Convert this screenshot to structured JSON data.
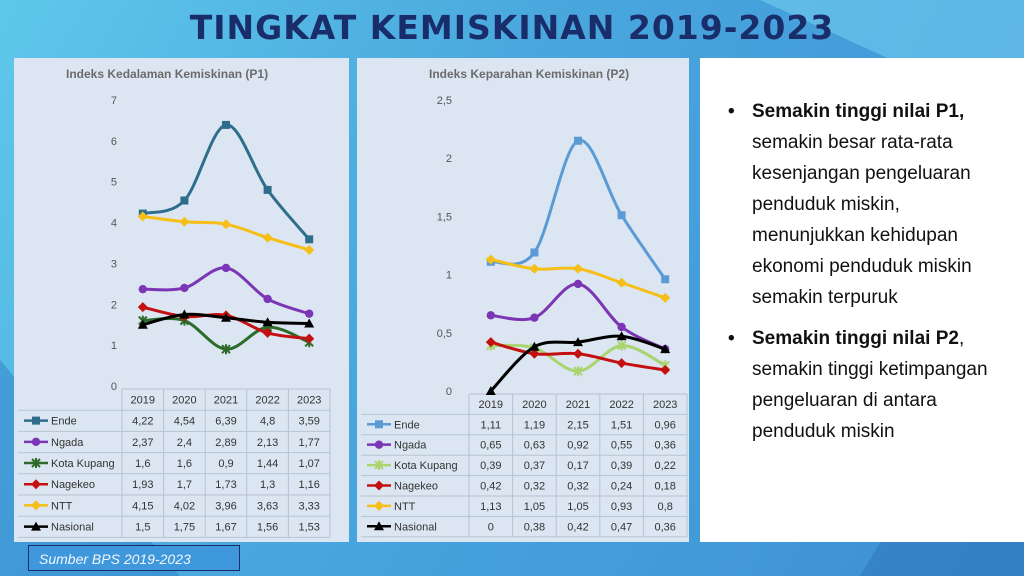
{
  "slide": {
    "title": "TINGKAT KEMISKINAN 2019-2023",
    "source": "Sumber BPS 2019-2023",
    "bullets": [
      {
        "bold": "Semakin tinggi nilai P1,",
        "rest": " semakin besar rata-rata kesenjangan pengeluaran penduduk miskin, menunjukkan kehidupan ekonomi penduduk miskin semakin terpuruk"
      },
      {
        "bold": "Semakin tinggi nilai P2",
        "rest": ", semakin tinggi ketimpangan pengeluaran di antara penduduk miskin"
      }
    ]
  },
  "colors": {
    "Ende": "#2f6d8c",
    "Ngada": "#7b35b5",
    "Kota Kupang": "#2e6b2a",
    "Nagekeo": "#c41010",
    "NTT": "#f5bf17",
    "Nasional": "#000000"
  },
  "colors_p2": {
    "Ende": "#5b9bd5",
    "Ngada": "#7b35b5",
    "Kota Kupang": "#a9d46e",
    "Nagekeo": "#c41010",
    "NTT": "#f5bf17",
    "Nasional": "#000000"
  },
  "chart_data": [
    {
      "type": "line",
      "title": "Indeks Kedalaman Kemiskinan (P1)",
      "categories": [
        "2019",
        "2020",
        "2021",
        "2022",
        "2023"
      ],
      "ylim": [
        0,
        7
      ],
      "yticks": [
        "0",
        "1",
        "2",
        "3",
        "4",
        "5",
        "6",
        "7"
      ],
      "series": [
        {
          "name": "Ende",
          "values": [
            4.22,
            4.54,
            6.39,
            4.8,
            3.59
          ],
          "labels": [
            "4,22",
            "4,54",
            "6,39",
            "4,8",
            "3,59"
          ]
        },
        {
          "name": "Ngada",
          "values": [
            2.37,
            2.4,
            2.89,
            2.13,
            1.77
          ],
          "labels": [
            "2,37",
            "2,4",
            "2,89",
            "2,13",
            "1,77"
          ]
        },
        {
          "name": "Kota Kupang",
          "values": [
            1.6,
            1.6,
            0.9,
            1.44,
            1.07
          ],
          "labels": [
            "1,6",
            "1,6",
            "0,9",
            "1,44",
            "1,07"
          ]
        },
        {
          "name": "Nagekeo",
          "values": [
            1.93,
            1.7,
            1.73,
            1.3,
            1.16
          ],
          "labels": [
            "1,93",
            "1,7",
            "1,73",
            "1,3",
            "1,16"
          ]
        },
        {
          "name": "NTT",
          "values": [
            4.15,
            4.02,
            3.96,
            3.63,
            3.33
          ],
          "labels": [
            "4,15",
            "4,02",
            "3,96",
            "3,63",
            "3,33"
          ]
        },
        {
          "name": "Nasional",
          "values": [
            1.5,
            1.75,
            1.67,
            1.56,
            1.53
          ],
          "labels": [
            "1,5",
            "1,75",
            "1,67",
            "1,56",
            "1,53"
          ]
        }
      ]
    },
    {
      "type": "line",
      "title": "Indeks Keparahan Kemiskinan (P2)",
      "categories": [
        "2019",
        "2020",
        "2021",
        "2022",
        "2023"
      ],
      "ylim": [
        0,
        2.5
      ],
      "yticks": [
        "0",
        "0,5",
        "1",
        "1,5",
        "2",
        "2,5"
      ],
      "series": [
        {
          "name": "Ende",
          "values": [
            1.11,
            1.19,
            2.15,
            1.51,
            0.96
          ],
          "labels": [
            "1,11",
            "1,19",
            "2,15",
            "1,51",
            "0,96"
          ]
        },
        {
          "name": "Ngada",
          "values": [
            0.65,
            0.63,
            0.92,
            0.55,
            0.36
          ],
          "labels": [
            "0,65",
            "0,63",
            "0,92",
            "0,55",
            "0,36"
          ]
        },
        {
          "name": "Kota Kupang",
          "values": [
            0.39,
            0.37,
            0.17,
            0.39,
            0.22
          ],
          "labels": [
            "0,39",
            "0,37",
            "0,17",
            "0,39",
            "0,22"
          ]
        },
        {
          "name": "Nagekeo",
          "values": [
            0.42,
            0.32,
            0.32,
            0.24,
            0.18
          ],
          "labels": [
            "0,42",
            "0,32",
            "0,32",
            "0,24",
            "0,18"
          ]
        },
        {
          "name": "NTT",
          "values": [
            1.13,
            1.05,
            1.05,
            0.93,
            0.8
          ],
          "labels": [
            "1,13",
            "1,05",
            "1,05",
            "0,93",
            "0,8"
          ]
        },
        {
          "name": "Nasional",
          "values": [
            0,
            0.38,
            0.42,
            0.47,
            0.36
          ],
          "labels": [
            "0",
            "0,38",
            "0,42",
            "0,47",
            "0,36"
          ]
        }
      ]
    }
  ]
}
